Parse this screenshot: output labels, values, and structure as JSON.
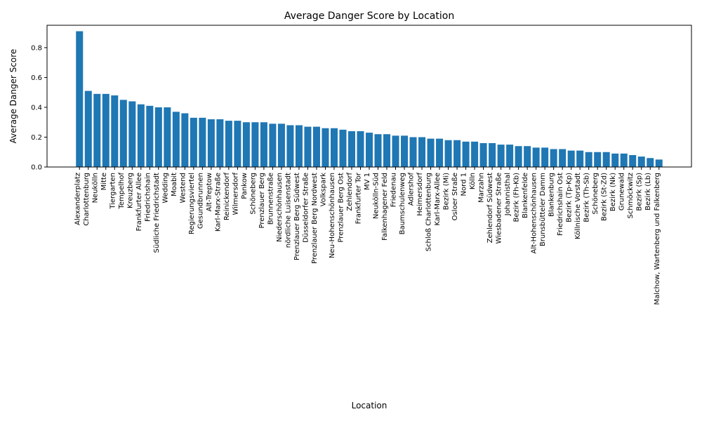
{
  "page": {
    "title": "Average Danger Score by Location",
    "xlabel": "Location",
    "ylabel": "Average Danger Score"
  },
  "chart_data": {
    "type": "bar",
    "title": "Average Danger Score by Location",
    "xlabel": "Location",
    "ylabel": "Average Danger Score",
    "ylim": [
      0,
      0.95
    ],
    "yticks": [
      "0.0",
      "0.2",
      "0.4",
      "0.6",
      "0.8"
    ],
    "grid": false,
    "legend": "none",
    "color": "#1f77b4",
    "categories": [
      "Alexanderplatz",
      "Charlottenburg",
      "Neukölln",
      "Mitte",
      "Tiergarten",
      "Tempelhof",
      "Kreuzberg",
      "Frankfurter Allee",
      "Friedrichshain",
      "Südliche Friedrichstadt",
      "Wedding",
      "Moabit",
      "Westend",
      "Regierungsviertel",
      "Gesundbrunnen",
      "Alt-Treptow",
      "Karl-Marx-Straße",
      "Reinickendorf",
      "Wilmersdorf",
      "Pankow",
      "Schöneberg",
      "Prenzlauer Berg",
      "Brunnenstraße",
      "Niederschönhausen",
      "nördliche Luisenstadt",
      "Prenzlauer Berg Südwest",
      "Düsseldorfer Straße",
      "Prenzlauer Berg Nordwest",
      "Volkspark",
      "Neu-Hohenschönhausen",
      "Prenzlauer Berg Ost",
      "Zehlendorf",
      "Frankfurter Tor",
      "MV 1",
      "Neukölln-Süd",
      "Falkenhagener Feld",
      "Friedenau",
      "Baumschulenweg",
      "Adlershof",
      "Heimersdorf",
      "Schloß Charlottenburg",
      "Karl-Marx-Allee",
      "Bezirk (Mi)",
      "Osloer Straße",
      "Nord 1",
      "Kölln",
      "Marzahn",
      "Zehlendorf Südwest",
      "Wiesbadener Straße",
      "Johannisthal",
      "Bezirk (Fh-Kb)",
      "Blankenfelde",
      "Alt-Hohenschönhausen",
      "Brunsbütteler Damm",
      "Blankenburg",
      "Friedrichshain Ost",
      "Bezirk (Tp-Kp)",
      "Köllnische Vorstadt",
      "Bezirk (Th-Sb)",
      "Schöneberg",
      "Bezirk (St-Zd)",
      "Bezirk (Nk)",
      "Grunewald",
      "Schmöckwitz",
      "Bezirk (Sp)",
      "Bezirk (Lb)",
      "Malchow, Wartenberg und Falkenberg"
    ],
    "values": [
      0.91,
      0.51,
      0.49,
      0.49,
      0.48,
      0.45,
      0.44,
      0.42,
      0.41,
      0.4,
      0.4,
      0.37,
      0.36,
      0.33,
      0.33,
      0.32,
      0.32,
      0.31,
      0.31,
      0.3,
      0.3,
      0.3,
      0.29,
      0.29,
      0.28,
      0.28,
      0.27,
      0.27,
      0.26,
      0.26,
      0.25,
      0.24,
      0.24,
      0.23,
      0.22,
      0.22,
      0.21,
      0.21,
      0.2,
      0.2,
      0.19,
      0.19,
      0.18,
      0.18,
      0.17,
      0.17,
      0.16,
      0.16,
      0.15,
      0.15,
      0.14,
      0.14,
      0.13,
      0.13,
      0.12,
      0.12,
      0.11,
      0.11,
      0.1,
      0.1,
      0.1,
      0.09,
      0.09,
      0.08,
      0.07,
      0.06,
      0.05
    ],
    "label_visibility": [
      true,
      true,
      true,
      true,
      true,
      true,
      true,
      true,
      true,
      true,
      true,
      true,
      true,
      true,
      true,
      true,
      true,
      true,
      true,
      true,
      true,
      true,
      true,
      true,
      true,
      true,
      true,
      true,
      true,
      true,
      true,
      true,
      true,
      true,
      true,
      true,
      true,
      true,
      true,
      true,
      true,
      true,
      true,
      true,
      true,
      true,
      true,
      true,
      true,
      true,
      true,
      true,
      true,
      true,
      true,
      true,
      true,
      true,
      true,
      true,
      true,
      true,
      true,
      true,
      true,
      true,
      true
    ]
  }
}
